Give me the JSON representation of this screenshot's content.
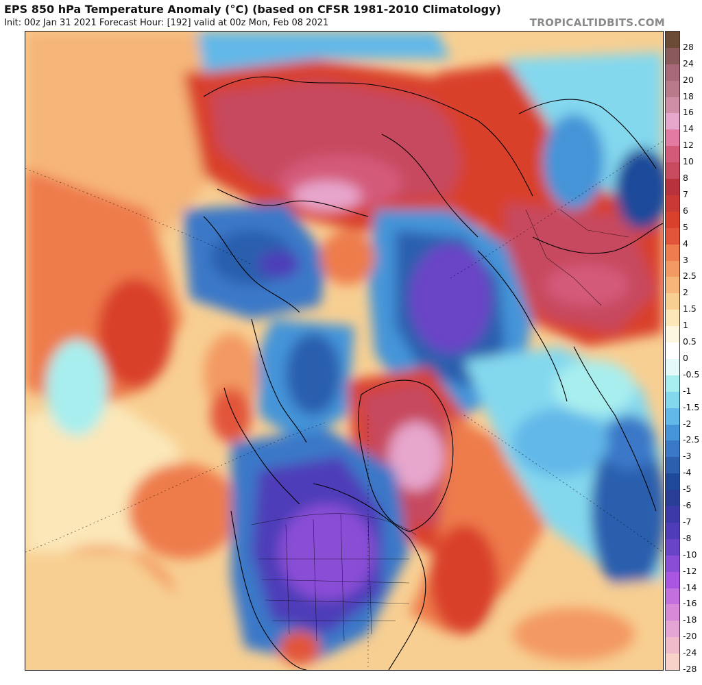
{
  "header": {
    "title": "EPS 850 hPa Temperature Anomaly (°C) (based on CFSR 1981-2010 Climatology)",
    "subtitle": "Init: 00z Jan 31 2021   Forecast Hour: [192]   valid at 00z Mon, Feb 08 2021",
    "brand": "TROPICALTIDBITS.COM"
  },
  "map": {
    "projection": "north-polar-stereographic",
    "region": "Northern Hemisphere"
  },
  "colorbar": {
    "units": "°C",
    "levels": [
      {
        "label": "28",
        "color": "#6b4a36"
      },
      {
        "label": "24",
        "color": "#8a5a5a"
      },
      {
        "label": "20",
        "color": "#a86a78"
      },
      {
        "label": "18",
        "color": "#b97a8c"
      },
      {
        "label": "16",
        "color": "#cf8da6"
      },
      {
        "label": "14",
        "color": "#e7a6cc"
      },
      {
        "label": "12",
        "color": "#e27aa2"
      },
      {
        "label": "10",
        "color": "#d45a7a"
      },
      {
        "label": "8",
        "color": "#c74a5e"
      },
      {
        "label": "7",
        "color": "#b8323c"
      },
      {
        "label": "6",
        "color": "#c93a36"
      },
      {
        "label": "5",
        "color": "#d9412c"
      },
      {
        "label": "4",
        "color": "#e2553a"
      },
      {
        "label": "3",
        "color": "#ee7c4c"
      },
      {
        "label": "2.5",
        "color": "#f39a62"
      },
      {
        "label": "2",
        "color": "#f6b679"
      },
      {
        "label": "1.5",
        "color": "#f8cf92"
      },
      {
        "label": "1",
        "color": "#fbe7b8"
      },
      {
        "label": "0.5",
        "color": "#fdf6e0"
      },
      {
        "label": "0",
        "color": "#ffffff"
      },
      {
        "label": "-0.5",
        "color": "#e4f9f9"
      },
      {
        "label": "-1",
        "color": "#a8eeee"
      },
      {
        "label": "-1.5",
        "color": "#84d8ee"
      },
      {
        "label": "-2",
        "color": "#62b8e8"
      },
      {
        "label": "-2.5",
        "color": "#4594d8"
      },
      {
        "label": "-3",
        "color": "#3a78c8"
      },
      {
        "label": "-4",
        "color": "#2c5fae"
      },
      {
        "label": "-5",
        "color": "#1f4a9a"
      },
      {
        "label": "-6",
        "color": "#2a3e98"
      },
      {
        "label": "-7",
        "color": "#3c3aa8"
      },
      {
        "label": "-8",
        "color": "#4e3cb8"
      },
      {
        "label": "-10",
        "color": "#6a44c6"
      },
      {
        "label": "-12",
        "color": "#8a4ed6"
      },
      {
        "label": "-14",
        "color": "#aa56e2"
      },
      {
        "label": "-16",
        "color": "#c270de"
      },
      {
        "label": "-18",
        "color": "#d68ad8"
      },
      {
        "label": "-20",
        "color": "#e4a4d4"
      },
      {
        "label": "-24",
        "color": "#f0bccc"
      },
      {
        "label": "-28",
        "color": "#f8d2c8"
      }
    ]
  }
}
